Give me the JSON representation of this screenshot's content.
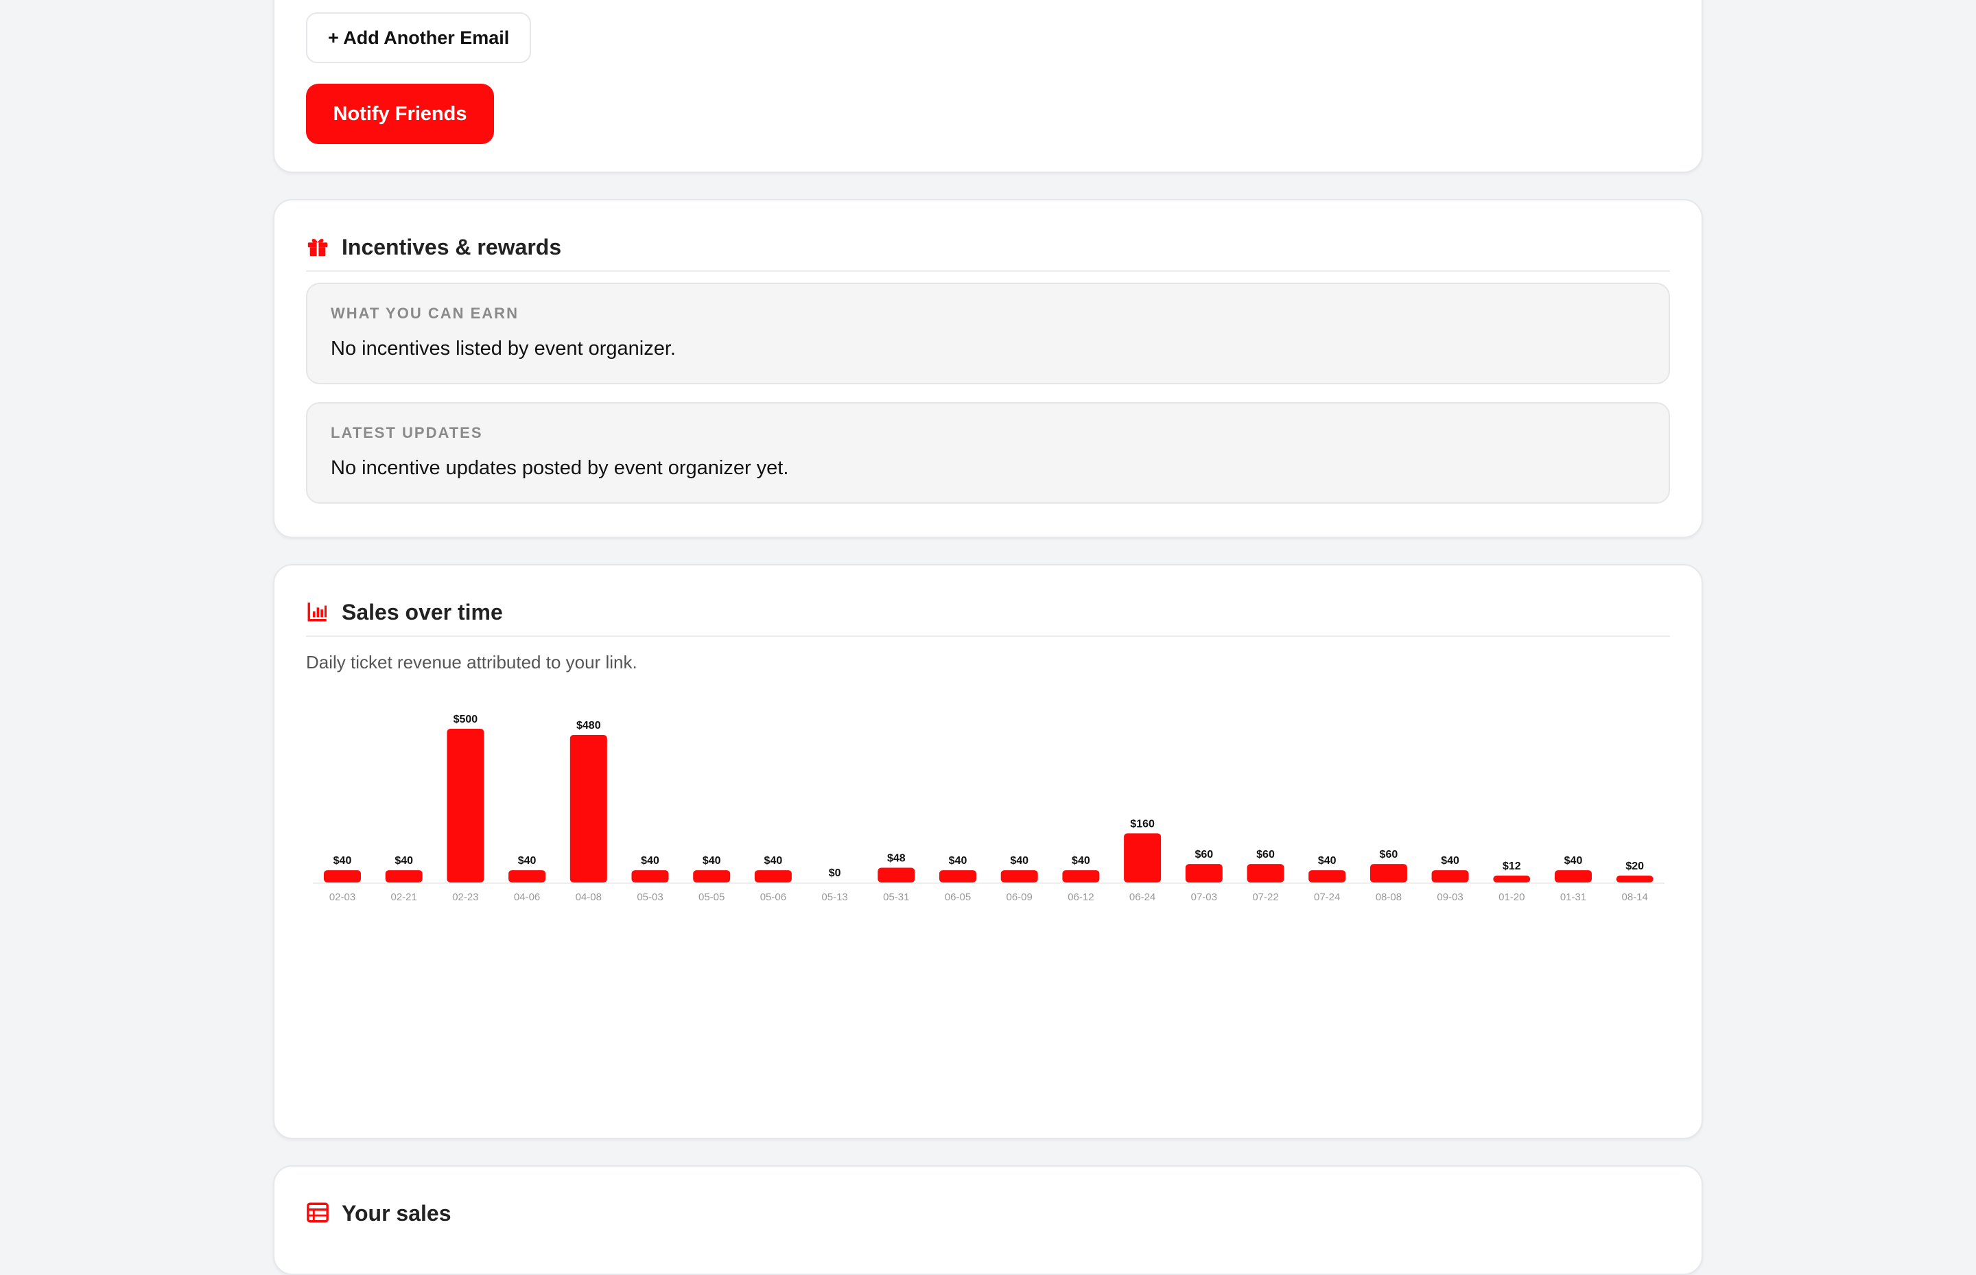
{
  "notify": {
    "add_email_label": "+ Add Another Email",
    "notify_label": "Notify Friends"
  },
  "incentives": {
    "title": "Incentives & rewards",
    "icon": "gift-icon",
    "earn": {
      "label": "WHAT YOU CAN EARN",
      "text": "No incentives listed by event organizer."
    },
    "updates": {
      "label": "LATEST UPDATES",
      "text": "No incentive updates posted by event organizer yet."
    }
  },
  "sales": {
    "title": "Sales over time",
    "icon": "bar-chart-icon",
    "subtitle": "Daily ticket revenue attributed to your link."
  },
  "your_sales": {
    "title": "Your sales",
    "icon": "table-icon"
  },
  "colors": {
    "accent": "#ff0a0a",
    "background": "#f3f4f6",
    "card": "#ffffff"
  },
  "chart_data": {
    "type": "bar",
    "categories": [
      "02-03",
      "02-21",
      "02-23",
      "04-06",
      "04-08",
      "05-03",
      "05-05",
      "05-06",
      "05-13",
      "05-31",
      "06-05",
      "06-09",
      "06-12",
      "06-24",
      "07-03",
      "07-22",
      "07-24",
      "08-08",
      "09-03",
      "01-20",
      "01-31",
      "08-14"
    ],
    "values": [
      40,
      40,
      500,
      40,
      480,
      40,
      40,
      40,
      0,
      48,
      40,
      40,
      40,
      160,
      60,
      60,
      40,
      60,
      40,
      12,
      40,
      20
    ],
    "value_labels": [
      "$40",
      "$40",
      "$500",
      "$40",
      "$480",
      "$40",
      "$40",
      "$40",
      "$0",
      "$48",
      "$40",
      "$40",
      "$40",
      "$160",
      "$60",
      "$60",
      "$40",
      "$60",
      "$40",
      "$12",
      "$40",
      "$20"
    ],
    "ylim": [
      0,
      500
    ],
    "grid": false,
    "legend": "none"
  }
}
